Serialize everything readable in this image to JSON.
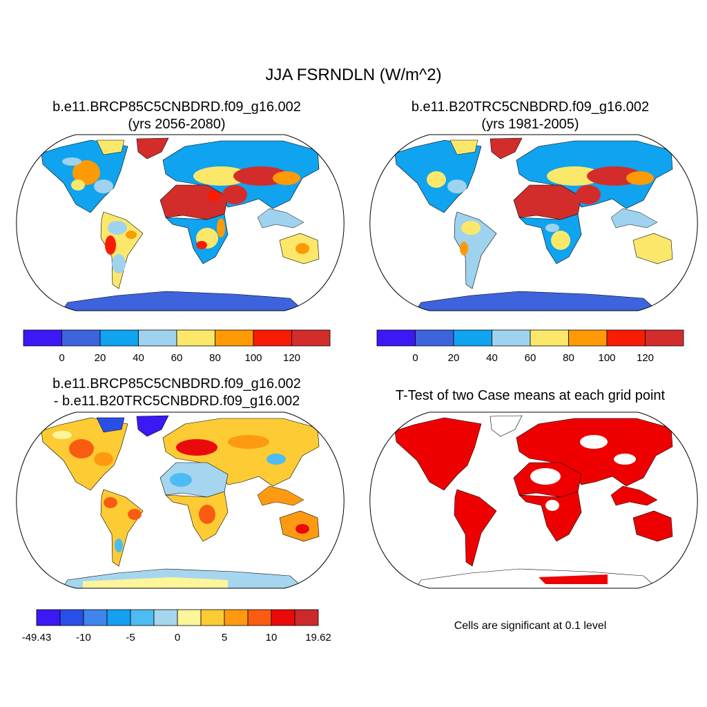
{
  "title": "JJA FSRNDLN (W/m^2)",
  "panels": [
    {
      "id": "case1",
      "title_line1": "b.e11.BRCP85C5CNBDRD.f09_g16.002",
      "title_line2": "(yrs 2056-2080)",
      "colorbar": {
        "colors": [
          "#3a19f5",
          "#3d64dd",
          "#0fa3f0",
          "#9fd2ee",
          "#fbe86a",
          "#fd9a05",
          "#f81c04",
          "#d22d2b"
        ],
        "labels": [
          "0",
          "20",
          "40",
          "60",
          "80",
          "100",
          "120"
        ]
      }
    },
    {
      "id": "case2",
      "title_line1": "b.e11.B20TRC5CNBDRD.f09_g16.002",
      "title_line2": "(yrs 1981-2005)",
      "colorbar": {
        "colors": [
          "#3a19f5",
          "#3d64dd",
          "#0fa3f0",
          "#9fd2ee",
          "#fbe86a",
          "#fd9a05",
          "#f81c04",
          "#d22d2b"
        ],
        "labels": [
          "0",
          "20",
          "40",
          "60",
          "80",
          "100",
          "120"
        ]
      }
    },
    {
      "id": "difference",
      "title_line1": "b.e11.BRCP85C5CNBDRD.f09_g16.002",
      "title_line2": "- b.e11.B20TRC5CNBDRD.f09_g16.002",
      "colorbar": {
        "colors": [
          "#3a19f5",
          "#2a4ee8",
          "#3e86ec",
          "#149ff1",
          "#4cbcf2",
          "#a6d6ef",
          "#fdf59a",
          "#fdcb34",
          "#fd9a11",
          "#f95c11",
          "#eb0a0a",
          "#cc2a2a"
        ],
        "labels": [
          "-49.43",
          "-10",
          "-5",
          "0",
          "5",
          "10",
          "19.62"
        ]
      }
    },
    {
      "id": "ttest",
      "title": "T-Test of two Case means at each grid point",
      "note": "Cells are significant at 0.1 level",
      "fill_color": "#ee0000"
    }
  ]
}
